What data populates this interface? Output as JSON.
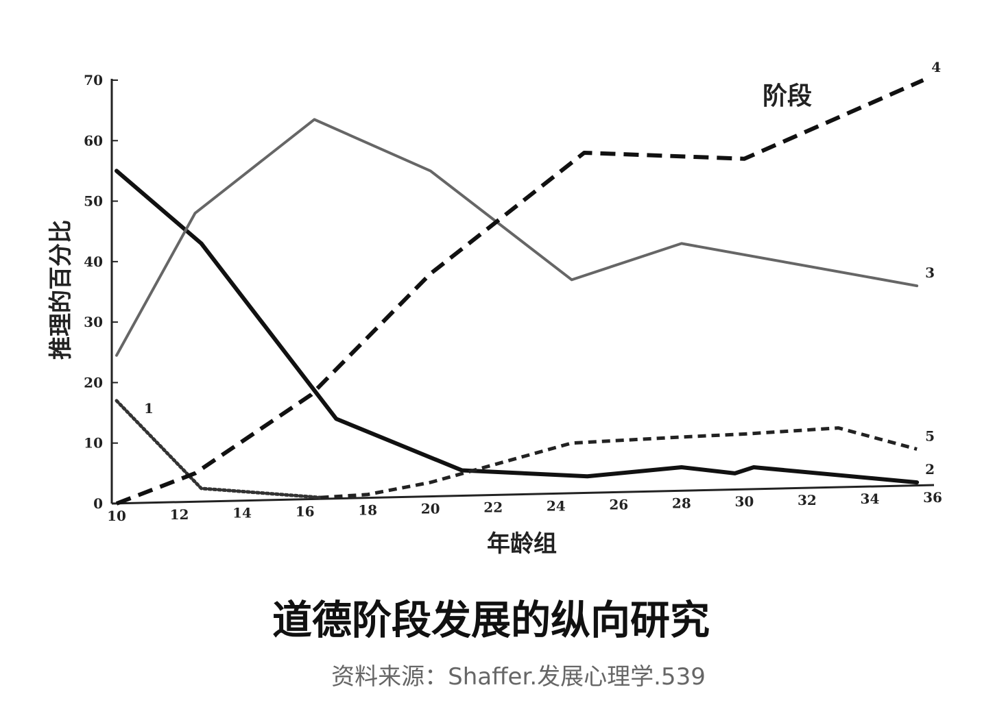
{
  "chart_data": {
    "type": "line",
    "title": "道德阶段发展的纵向研究",
    "source": "资料来源：Shaffer.发展心理学.539",
    "xlabel": "年龄组",
    "ylabel": "推理的百分比",
    "legend_title": "阶段",
    "xlim": [
      10,
      36
    ],
    "ylim": [
      0,
      70
    ],
    "xticks": [
      10,
      12,
      14,
      16,
      18,
      20,
      22,
      24,
      26,
      28,
      30,
      32,
      34,
      36
    ],
    "yticks": [
      0,
      10,
      20,
      30,
      40,
      50,
      60,
      70
    ],
    "grid": false,
    "series": [
      {
        "name": "1",
        "style": "dotted",
        "color": "#333333",
        "points": [
          [
            10,
            17
          ],
          [
            12.7,
            2.5
          ],
          [
            14,
            2
          ],
          [
            16.5,
            1
          ]
        ]
      },
      {
        "name": "2",
        "style": "solid-thick",
        "color": "#111111",
        "points": [
          [
            10,
            55
          ],
          [
            12.7,
            43
          ],
          [
            17,
            14
          ],
          [
            21,
            5.5
          ],
          [
            25,
            4.5
          ],
          [
            28,
            6
          ],
          [
            29.7,
            5
          ],
          [
            30.3,
            6
          ],
          [
            35.5,
            3.5
          ]
        ]
      },
      {
        "name": "3",
        "style": "solid-gray",
        "color": "#666666",
        "points": [
          [
            10,
            24.5
          ],
          [
            12.5,
            48
          ],
          [
            16.3,
            63.5
          ],
          [
            20,
            55
          ],
          [
            24.5,
            37
          ],
          [
            28,
            43
          ],
          [
            35.5,
            36
          ]
        ]
      },
      {
        "name": "4",
        "style": "dashed-long",
        "color": "#111111",
        "points": [
          [
            10,
            0
          ],
          [
            12.5,
            5
          ],
          [
            16.2,
            18
          ],
          [
            20,
            38
          ],
          [
            24.9,
            58
          ],
          [
            30,
            57
          ],
          [
            35.7,
            70
          ]
        ]
      },
      {
        "name": "5",
        "style": "dashed-short",
        "color": "#222222",
        "points": [
          [
            16.5,
            1
          ],
          [
            18,
            1.5
          ],
          [
            20,
            3.5
          ],
          [
            24.5,
            10
          ],
          [
            28,
            11
          ],
          [
            30,
            11.5
          ],
          [
            33,
            12.5
          ],
          [
            35.5,
            9
          ]
        ]
      }
    ]
  }
}
